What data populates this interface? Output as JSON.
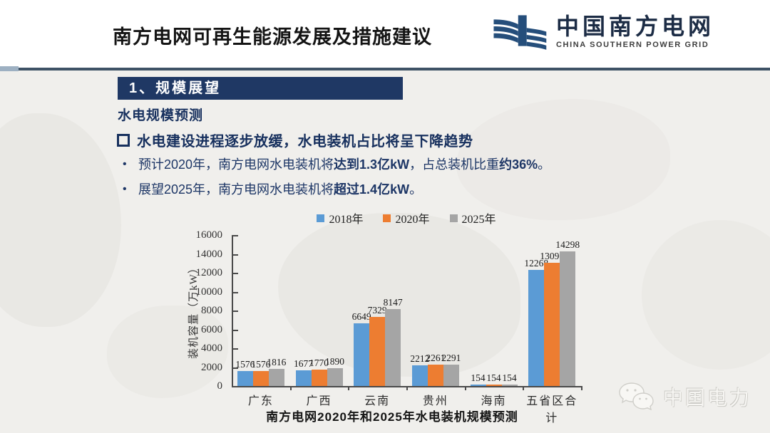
{
  "slide": {
    "header": {
      "title": "南方电网可再生能源发展及措施建议",
      "logo": {
        "cn": "中国南方电网",
        "en": "CHINA SOUTHERN POWER GRID",
        "icon_color": "#254e7b"
      }
    },
    "section": {
      "label": "1、规模展望"
    },
    "subtitle": "水电规模预测",
    "key_point": "水电建设进程逐步放缓，水电装机占比将呈下降趋势",
    "bullets": [
      {
        "parts": [
          {
            "text": "预计2020年，南方电网水电装机将",
            "bold": false
          },
          {
            "text": "达到1.3亿kW",
            "bold": true
          },
          {
            "text": "，占总装机比重",
            "bold": false
          },
          {
            "text": "约36%",
            "bold": true
          },
          {
            "text": "。",
            "bold": false
          }
        ]
      },
      {
        "parts": [
          {
            "text": "展望2025年，南方电网水电装机将",
            "bold": false
          },
          {
            "text": "超过1.4亿kW",
            "bold": true
          },
          {
            "text": "。",
            "bold": false
          }
        ]
      }
    ],
    "watermark": {
      "text": "中国电力"
    },
    "colors": {
      "accent_navy": "#1f3864",
      "divider": "#3e5266",
      "body_bg": "#f0efec"
    }
  },
  "chart_data": {
    "type": "bar",
    "title": "南方电网2020年和2025年水电装机规模预测",
    "categories": [
      "广东",
      "广西",
      "云南",
      "贵州",
      "海南",
      "五省区合计"
    ],
    "series": [
      {
        "name": "2018年",
        "color": "#5B9BD5",
        "values": [
          1576,
          1677,
          6649,
          2212,
          154,
          12268
        ]
      },
      {
        "name": "2020年",
        "color": "#ED7D31",
        "values": [
          1576,
          1770,
          7329,
          2261,
          154,
          13090
        ]
      },
      {
        "name": "2025年",
        "color": "#A5A5A5",
        "values": [
          1816,
          1890,
          8147,
          2291,
          154,
          14298
        ]
      }
    ],
    "xlabel": "",
    "ylabel": "装机容量（万kW）",
    "ylim": [
      0,
      16000
    ],
    "ytick_step": 2000,
    "legend_position": "top",
    "grid": false,
    "data_labels": true
  }
}
